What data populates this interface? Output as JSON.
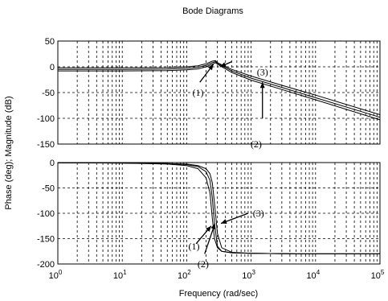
{
  "chart_data": {
    "type": "line",
    "title": "Bode Diagrams",
    "xlabel": "Frequency (rad/sec)",
    "ylabel": "Phase (deg); Magnitude (dB)",
    "xscale": "log",
    "grid": true,
    "x_ticks": [
      {
        "base": "10",
        "exp": "0"
      },
      {
        "base": "10",
        "exp": "1"
      },
      {
        "base": "10",
        "exp": "2"
      },
      {
        "base": "10",
        "exp": "3"
      },
      {
        "base": "10",
        "exp": "4"
      },
      {
        "base": "10",
        "exp": "5"
      }
    ],
    "xlim": [
      1,
      100000
    ],
    "panels": [
      {
        "name": "magnitude",
        "ylim": [
          -150,
          50
        ],
        "yticks": [
          "50",
          "0",
          "-50",
          "-100",
          "-150"
        ],
        "series": [
          {
            "label": "(1)",
            "x": [
              1,
              10,
              50,
              100,
              150,
              200,
              250,
              280,
              300,
              350,
              500,
              1000,
              3000,
              10000,
              100000
            ],
            "y": [
              -2,
              -2,
              -1.5,
              0,
              2,
              6,
              11,
              12,
              8,
              4,
              -5,
              -18,
              -36,
              -55,
              -93
            ]
          },
          {
            "label": "(2)",
            "x": [
              1,
              10,
              50,
              100,
              150,
              200,
              250,
              280,
              300,
              350,
              500,
              1000,
              3000,
              10000,
              100000
            ],
            "y": [
              -5,
              -5,
              -4.5,
              -3,
              -1,
              3,
              8,
              10,
              7,
              2,
              -8,
              -22,
              -40,
              -60,
              -98
            ]
          },
          {
            "label": "(3)",
            "x": [
              1,
              10,
              50,
              100,
              150,
              200,
              250,
              280,
              300,
              350,
              500,
              1000,
              3000,
              10000,
              100000
            ],
            "y": [
              -8,
              -8,
              -7.5,
              -6,
              -4,
              0,
              5,
              8,
              5,
              0,
              -11,
              -26,
              -44,
              -64,
              -103
            ]
          }
        ],
        "annotations": [
          "(1)",
          "(2)",
          "(3)"
        ]
      },
      {
        "name": "phase",
        "ylim": [
          -200,
          0
        ],
        "yticks": [
          "0",
          "-50",
          "-100",
          "-150",
          "-200"
        ],
        "series": [
          {
            "label": "(1)",
            "x": [
              1,
              10,
              50,
              100,
              150,
              200,
              230,
              250,
              270,
              300,
              350,
              500,
              1000,
              5000,
              100000
            ],
            "y": [
              -0.5,
              -1,
              -3,
              -6,
              -12,
              -30,
              -60,
              -110,
              -150,
              -168,
              -175,
              -178,
              -179,
              -180,
              -180
            ]
          },
          {
            "label": "(2)",
            "x": [
              1,
              10,
              50,
              100,
              150,
              200,
              230,
              250,
              270,
              300,
              350,
              500,
              1000,
              5000,
              100000
            ],
            "y": [
              -0.5,
              -1,
              -2,
              -4,
              -8,
              -18,
              -35,
              -70,
              -120,
              -165,
              -175,
              -178,
              -179,
              -180,
              -180
            ]
          },
          {
            "label": "(3)",
            "x": [
              1,
              10,
              50,
              100,
              150,
              200,
              230,
              250,
              270,
              300,
              350,
              500,
              1000,
              5000,
              100000
            ],
            "y": [
              -0.5,
              -1,
              -2,
              -3,
              -6,
              -12,
              -22,
              -40,
              -80,
              -140,
              -168,
              -177,
              -179,
              -180,
              -180
            ]
          }
        ],
        "annotations": [
          "(1)",
          "(2)",
          "(3)"
        ]
      }
    ]
  }
}
